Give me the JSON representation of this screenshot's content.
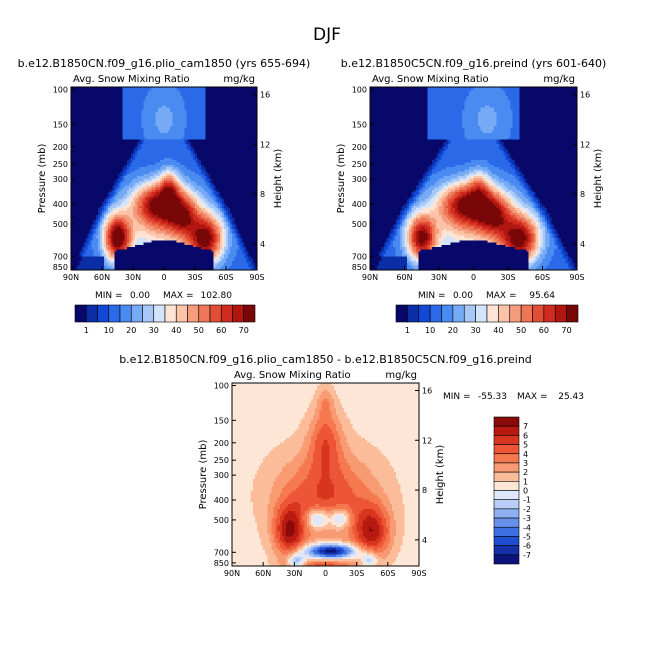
{
  "figure": {
    "title": "DJF"
  },
  "chart_data": [
    {
      "type": "heatmap",
      "title": "b.e12.B1850CN.f09_g16.plio_cam1850 (yrs 655-694)",
      "left_label": "Avg. Snow Mixing Ratio",
      "units": "mg/kg",
      "ylabel": "Pressure (mb)",
      "y2label": "Height (km)",
      "x_ticks": [
        "90N",
        "60N",
        "30N",
        "0",
        "30S",
        "60S",
        "90S"
      ],
      "y_ticks": [
        "100",
        "150",
        "200",
        "250",
        "300",
        "400",
        "500",
        "700",
        "850"
      ],
      "y2_ticks": [
        "16",
        "12",
        "8",
        "4"
      ],
      "stats": {
        "min_label": "MIN =",
        "min": "0.00",
        "max_label": "MAX =",
        "max": "102.80"
      },
      "levels": [
        "1",
        "10",
        "20",
        "30",
        "40",
        "50",
        "60",
        "70"
      ],
      "colors": [
        "#08086b",
        "#0b2da6",
        "#1148d6",
        "#2a6ae8",
        "#4a8bf2",
        "#77aaf5",
        "#a8c8f8",
        "#d4e4fb",
        "#fde4d4",
        "#fbc3a7",
        "#f59c7d",
        "#ee7556",
        "#e24e35",
        "#cf2c1f",
        "#b0150f",
        "#7a0707"
      ]
    },
    {
      "type": "heatmap",
      "title": "b.e12.B1850C5CN.f09_g16.preind (yrs 601-640)",
      "left_label": "Avg. Snow Mixing Ratio",
      "units": "mg/kg",
      "ylabel": "Pressure (mb)",
      "y2label": "Height (km)",
      "x_ticks": [
        "90N",
        "60N",
        "30N",
        "0",
        "30S",
        "60S",
        "90S"
      ],
      "y_ticks": [
        "100",
        "150",
        "200",
        "250",
        "300",
        "400",
        "500",
        "700",
        "850"
      ],
      "y2_ticks": [
        "16",
        "12",
        "8",
        "4"
      ],
      "stats": {
        "min_label": "MIN =",
        "min": "0.00",
        "max_label": "MAX =",
        "max": "95.64"
      },
      "levels": [
        "1",
        "10",
        "20",
        "30",
        "40",
        "50",
        "60",
        "70"
      ],
      "colors": [
        "#08086b",
        "#0b2da6",
        "#1148d6",
        "#2a6ae8",
        "#4a8bf2",
        "#77aaf5",
        "#a8c8f8",
        "#d4e4fb",
        "#fde4d4",
        "#fbc3a7",
        "#f59c7d",
        "#ee7556",
        "#e24e35",
        "#cf2c1f",
        "#b0150f",
        "#7a0707"
      ]
    },
    {
      "type": "heatmap",
      "title": "b.e12.B1850CN.f09_g16.plio_cam1850 - b.e12.B1850C5CN.f09_g16.preind",
      "left_label": "Avg. Snow Mixing Ratio",
      "units": "mg/kg",
      "ylabel": "Pressure (mb)",
      "y2label": "Height (km)",
      "x_ticks": [
        "90N",
        "60N",
        "30N",
        "0",
        "30S",
        "60S",
        "90S"
      ],
      "y_ticks": [
        "100",
        "150",
        "200",
        "250",
        "300",
        "400",
        "500",
        "700",
        "850"
      ],
      "y2_ticks": [
        "16",
        "12",
        "8",
        "4"
      ],
      "stats": {
        "min_label": "MIN =",
        "min": "-55.33",
        "max_label": "MAX =",
        "max": "25.43"
      },
      "levels": [
        "7",
        "6",
        "5",
        "4",
        "3",
        "2",
        "1",
        "0",
        "-1",
        "-2",
        "-3",
        "-4",
        "-5",
        "-6",
        "-7"
      ],
      "colors": [
        "#8a0a0a",
        "#b81a12",
        "#d8351f",
        "#ec5535",
        "#f5784f",
        "#f89a72",
        "#fbbc99",
        "#fde6d5",
        "#dfe8fb",
        "#b8cdf7",
        "#8fb0f2",
        "#6690ec",
        "#3e6fe2",
        "#1f4ed1",
        "#1330a8",
        "#0a147a"
      ]
    }
  ]
}
